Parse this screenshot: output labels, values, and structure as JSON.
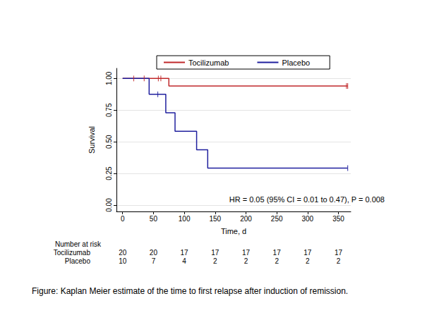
{
  "chart_data": {
    "type": "step",
    "x_label": "Time, d",
    "y_label": "Survival",
    "xlim": [
      -10,
      370
    ],
    "ylim": [
      -0.05,
      1.08
    ],
    "xticks": [
      0,
      50,
      100,
      150,
      200,
      250,
      300,
      350
    ],
    "yticks": [
      {
        "value": 0,
        "label": "0.00"
      },
      {
        "value": 0.25,
        "label": "0.25"
      },
      {
        "value": 0.5,
        "label": "0.50"
      },
      {
        "value": 0.75,
        "label": "0.75"
      },
      {
        "value": 1,
        "label": "1.00"
      }
    ],
    "grid": true,
    "legend": "top",
    "series": [
      {
        "name": "Tocilizumab",
        "color": "#c0282b",
        "marker": "|",
        "x": [
          0,
          75,
          365
        ],
        "values": [
          1,
          0.941,
          0.941
        ],
        "censored": [
          18,
          35,
          58,
          62,
          363,
          365
        ]
      },
      {
        "name": "Placebo",
        "color": "#1f1f9e",
        "marker": "|",
        "x": [
          0,
          43,
          70,
          85,
          120,
          138,
          365
        ],
        "values": [
          1,
          0.875,
          0.729,
          0.583,
          0.4375,
          0.292,
          0.292
        ],
        "censored": [
          57,
          365
        ]
      }
    ],
    "annotation": "HR = 0.05 (95% CI = 0.01 to 0.47), P = 0.008",
    "risk_table": {
      "title": "Number at risk",
      "times": [
        0,
        50,
        100,
        150,
        200,
        250,
        300,
        350
      ],
      "rows": [
        {
          "name": "Tocilizumab",
          "values": [
            20,
            20,
            17,
            17,
            17,
            17,
            17,
            17
          ]
        },
        {
          "name": "Placebo",
          "values": [
            10,
            7,
            4,
            2,
            2,
            2,
            2,
            2
          ]
        }
      ]
    },
    "caption": "Figure: Kaplan Meier estimate of the time to first relapse after induction of remission."
  }
}
